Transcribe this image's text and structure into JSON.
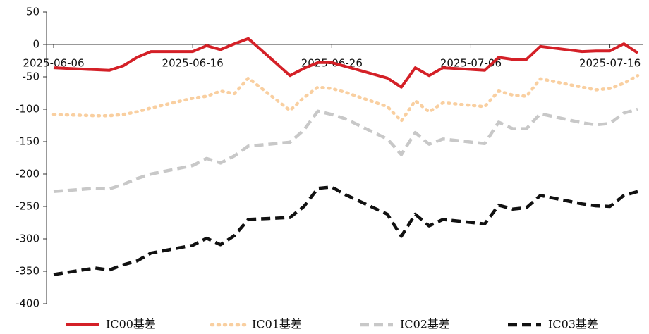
{
  "chart_data": {
    "type": "line",
    "x": [
      "2025-06-06",
      "2025-06-09",
      "2025-06-10",
      "2025-06-11",
      "2025-06-12",
      "2025-06-13",
      "2025-06-16",
      "2025-06-17",
      "2025-06-18",
      "2025-06-19",
      "2025-06-20",
      "2025-06-23",
      "2025-06-24",
      "2025-06-25",
      "2025-06-26",
      "2025-06-27",
      "2025-06-30",
      "2025-07-01",
      "2025-07-02",
      "2025-07-03",
      "2025-07-04",
      "2025-07-07",
      "2025-07-08",
      "2025-07-09",
      "2025-07-10",
      "2025-07-11",
      "2025-07-14",
      "2025-07-15",
      "2025-07-16",
      "2025-07-17",
      "2025-07-18"
    ],
    "xlim": [
      "2025-06-06",
      "2025-07-18"
    ],
    "xticks": [
      "2025-06-06",
      "2025-06-16",
      "2025-06-26",
      "2025-07-06",
      "2025-07-16"
    ],
    "ylim": [
      -400,
      50
    ],
    "yticks": [
      -400,
      -350,
      -300,
      -250,
      -200,
      -150,
      -100,
      -50,
      0,
      50
    ],
    "grid": false,
    "legend": "bottom",
    "series": [
      {
        "name": "IC00基差",
        "color": "#d42027",
        "style": "solid",
        "values": [
          -36,
          -39,
          -40,
          -33,
          -20,
          -11,
          -11,
          -2,
          -8,
          1,
          9,
          -48,
          -37,
          -28,
          -28,
          -34,
          -52,
          -66,
          -36,
          -48,
          -36,
          -40,
          -20,
          -23,
          -23,
          -3,
          -11,
          -10,
          -10,
          1,
          -13
        ]
      },
      {
        "name": "IC01基差",
        "color": "#f9cfa0",
        "style": "dotted",
        "values": [
          -108,
          -110,
          -110,
          -108,
          -104,
          -98,
          -83,
          -80,
          -72,
          -76,
          -52,
          -102,
          -82,
          -66,
          -68,
          -74,
          -96,
          -118,
          -87,
          -104,
          -90,
          -96,
          -72,
          -78,
          -80,
          -53,
          -66,
          -70,
          -68,
          -60,
          -48
        ]
      },
      {
        "name": "IC02基差",
        "color": "#c8c8c8",
        "style": "dashed",
        "values": [
          -227,
          -222,
          -223,
          -216,
          -207,
          -200,
          -187,
          -176,
          -183,
          -172,
          -157,
          -151,
          -132,
          -103,
          -108,
          -115,
          -146,
          -170,
          -136,
          -154,
          -146,
          -153,
          -120,
          -130,
          -130,
          -107,
          -121,
          -124,
          -122,
          -106,
          -100
        ]
      },
      {
        "name": "IC03基差",
        "color": "#111111",
        "style": "dashed",
        "values": [
          -355,
          -345,
          -348,
          -340,
          -334,
          -322,
          -310,
          -299,
          -309,
          -295,
          -270,
          -267,
          -250,
          -222,
          -220,
          -232,
          -262,
          -296,
          -262,
          -280,
          -270,
          -277,
          -248,
          -254,
          -252,
          -233,
          -246,
          -249,
          -250,
          -233,
          -227
        ]
      }
    ]
  }
}
